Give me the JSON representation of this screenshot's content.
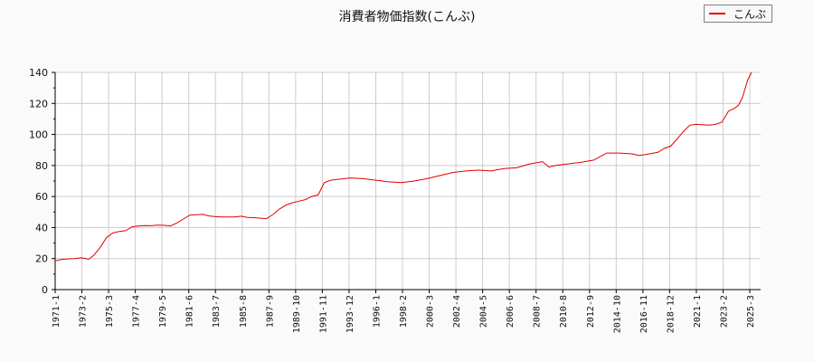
{
  "chart_data": {
    "type": "line",
    "title": "消費者物価指数(こんぶ)",
    "xlabel": "",
    "ylabel": "",
    "ylim": [
      0,
      140
    ],
    "yticks": [
      0,
      20,
      40,
      60,
      80,
      100,
      120,
      140
    ],
    "grid": true,
    "legend_position": "top-right",
    "x_tick_labels": [
      "1971-1",
      "1973-2",
      "1975-3",
      "1977-4",
      "1979-5",
      "1981-6",
      "1983-7",
      "1985-8",
      "1987-9",
      "1989-10",
      "1991-11",
      "1993-12",
      "1996-1",
      "1998-2",
      "2000-3",
      "2002-4",
      "2004-5",
      "2006-6",
      "2008-7",
      "2010-8",
      "2012-9",
      "2014-10",
      "2016-11",
      "2018-12",
      "2021-1",
      "2023-2",
      "2025-3"
    ],
    "series": [
      {
        "name": "こんぶ",
        "color": "#e00000",
        "x": [
          1971.0,
          1971.5,
          1972.0,
          1972.5,
          1973.0,
          1973.3,
          1973.6,
          1974.0,
          1974.5,
          1975.0,
          1975.5,
          1976.0,
          1976.5,
          1977.0,
          1977.5,
          1978.0,
          1978.5,
          1979.0,
          1979.5,
          1980.0,
          1980.5,
          1981.0,
          1981.5,
          1982.0,
          1982.5,
          1983.0,
          1983.5,
          1984.0,
          1985.0,
          1985.5,
          1986.0,
          1986.5,
          1987.0,
          1987.5,
          1988.0,
          1988.5,
          1989.0,
          1989.5,
          1990.0,
          1990.5,
          1991.0,
          1991.5,
          1992.0,
          1992.5,
          1993.0,
          1994.0,
          1995.0,
          1996.0,
          1997.0,
          1998.0,
          1999.0,
          2000.0,
          2001.0,
          2002.0,
          2003.0,
          2004.0,
          2005.0,
          2006.0,
          2007.0,
          2008.0,
          2009.0,
          2009.5,
          2010.0,
          2011.0,
          2012.0,
          2013.0,
          2014.0,
          2014.5,
          2015.0,
          2016.0,
          2016.5,
          2017.0,
          2018.0,
          2018.5,
          2019.0,
          2019.5,
          2020.0,
          2020.5,
          2021.0,
          2022.0,
          2022.5,
          2023.0,
          2023.5,
          2024.0,
          2024.3,
          2024.6,
          2025.0,
          2025.3
        ],
        "values": [
          18.5,
          19.5,
          19.8,
          20.0,
          20.5,
          20.2,
          19.5,
          22.0,
          27.0,
          33.5,
          36.5,
          37.5,
          38.0,
          40.5,
          41.0,
          41.3,
          41.2,
          41.6,
          41.4,
          41.0,
          43.0,
          45.5,
          48.0,
          48.3,
          48.5,
          47.5,
          47.0,
          46.8,
          46.8,
          47.3,
          46.5,
          46.4,
          46.0,
          45.8,
          48.5,
          52.0,
          54.5,
          56.0,
          57.0,
          58.0,
          60.0,
          61.0,
          69.0,
          70.5,
          71.0,
          72.0,
          71.5,
          70.5,
          69.5,
          69.0,
          70.0,
          71.5,
          73.5,
          75.5,
          76.5,
          77.0,
          76.5,
          78.0,
          78.5,
          81.0,
          82.5,
          79.0,
          80.0,
          81.0,
          82.0,
          83.5,
          88.0,
          88.0,
          88.0,
          87.5,
          86.5,
          87.0,
          88.5,
          91.0,
          92.5,
          97.0,
          102.0,
          106.0,
          106.5,
          106.0,
          106.5,
          108.0,
          115.0,
          117.0,
          119.0,
          124.0,
          135.0,
          140.0
        ]
      }
    ]
  },
  "legend": {
    "label": "こんぶ"
  }
}
